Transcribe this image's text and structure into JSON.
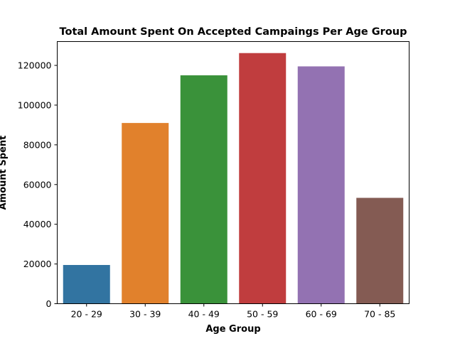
{
  "chart_data": {
    "type": "bar",
    "title": "Total Amount Spent On Accepted Campaings Per Age Group",
    "xlabel": "Age Group",
    "ylabel": "Amount Spent",
    "categories": [
      "20 - 29",
      "30 - 39",
      "40 - 49",
      "50 - 59",
      "60 - 69",
      "70 - 85"
    ],
    "values": [
      19500,
      91000,
      115000,
      126200,
      119500,
      53300
    ],
    "colors": [
      "#3274a1",
      "#e1812c",
      "#3a923a",
      "#c03d3e",
      "#9372b2",
      "#845b53"
    ],
    "ylim": [
      0,
      132000
    ],
    "yticks": [
      0,
      20000,
      40000,
      60000,
      80000,
      100000,
      120000
    ],
    "grid": false,
    "legend": "none"
  }
}
